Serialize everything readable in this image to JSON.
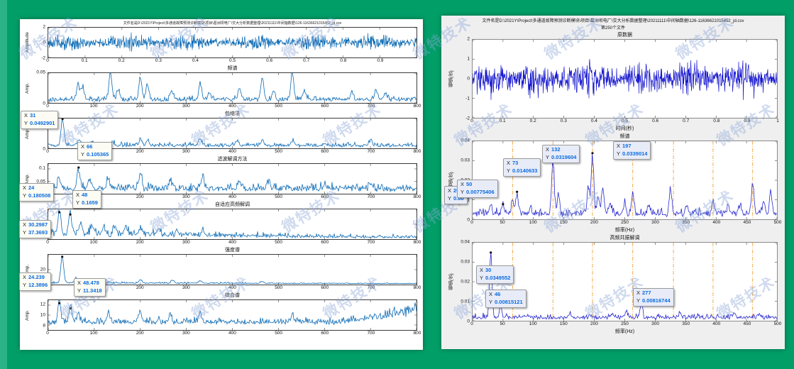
{
  "colors": {
    "background": "#019e68",
    "left_line": "#0d6bb5",
    "right_line": "#1515cf",
    "harmonic": "#f2a33c",
    "datatip_value": "#0a6bdf"
  },
  "watermark": {
    "text": "微特技术",
    "color": "#8fa9d9"
  },
  "labels": {
    "x_prefix": "X",
    "y_prefix": "Y"
  },
  "left_figure": {
    "title": "文件名是D:\\2021Y\\Project\\多通道故障预测诊断模块\\项目\\葛洲坝电厂\\交大分析数据整理\\20211111\\中间轴数据\\126-11636621015452_jd.csv"
  },
  "right_figure": {
    "title_lines": [
      "文件名是D:\\2021Y\\Project\\多通道故障预测诊断模块\\项目\\葛洲坝电厂\\交大分析数据整理\\20211111\\中间轴数据\\126-11636621015452_jd.csv",
      "第250个文件"
    ]
  },
  "tips": [
    {
      "x": "31",
      "y": "0.0492901"
    },
    {
      "x": "66",
      "y": "0.105365"
    },
    {
      "x": "24",
      "y": "0.180508"
    },
    {
      "x": "48",
      "y": "0.1659"
    },
    {
      "x": "30.2987",
      "y": "37.3693"
    },
    {
      "x": "24.239",
      "y": "12.3896"
    },
    {
      "x": "48.478",
      "y": "11.3418"
    },
    {
      "x": "29",
      "y": "0.00"
    },
    {
      "x": "50",
      "y": "0.00775406"
    },
    {
      "x": "73",
      "y": "0.0140633"
    },
    {
      "x": "132",
      "y": "0.0319604"
    },
    {
      "x": "197",
      "y": "0.0339014"
    },
    {
      "x": "30",
      "y": "0.0349552"
    },
    {
      "x": "46",
      "y": "0.00815121"
    },
    {
      "x": "277",
      "y": "0.00816744"
    }
  ],
  "chart_data": [
    {
      "id": "L0",
      "type": "line",
      "kind": "noise",
      "title": "",
      "ylabel": "Amplitude",
      "xlim": [
        0,
        1
      ],
      "ylim": [
        -2,
        2
      ],
      "xticks": [
        0,
        0.1,
        0.2,
        0.3,
        0.4,
        0.5,
        0.6,
        0.7,
        0.8,
        0.9
      ],
      "yticks": [
        -2,
        0,
        2
      ],
      "amp": 1.05,
      "seed": 11,
      "color": "#0d6bb5"
    },
    {
      "id": "L1",
      "type": "line",
      "kind": "spectrum",
      "title": "频谱",
      "ylabel": "Amp.",
      "xlim": [
        0,
        800
      ],
      "ylim": [
        0,
        0.05
      ],
      "xticks": [
        0,
        100,
        200,
        300,
        400,
        500,
        600,
        700,
        800
      ],
      "yticks": [
        0,
        0.05
      ],
      "base": 0.006,
      "seed": 22,
      "color": "#0d6bb5",
      "peaks": [
        [
          65,
          0.024
        ],
        [
          75,
          0.02
        ],
        [
          135,
          0.044
        ],
        [
          152,
          0.018
        ],
        [
          200,
          0.036
        ],
        [
          215,
          0.024
        ],
        [
          268,
          0.015
        ],
        [
          330,
          0.027
        ],
        [
          350,
          0.011
        ],
        [
          415,
          0.02
        ],
        [
          465,
          0.037
        ],
        [
          490,
          0.016
        ],
        [
          530,
          0.045
        ],
        [
          556,
          0.017
        ],
        [
          660,
          0.013
        ],
        [
          712,
          0.016
        ],
        [
          732,
          0.013
        ]
      ]
    },
    {
      "id": "L2",
      "type": "line",
      "kind": "spectrum",
      "title": "包络法",
      "ylabel": "Amp.",
      "xlim": [
        0,
        800
      ],
      "ylim": [
        0,
        0.05
      ],
      "xticks": [
        0,
        100,
        200,
        300,
        400,
        500,
        600,
        700,
        800
      ],
      "yticks": [
        0,
        0.05
      ],
      "base": 0.005,
      "seed": 33,
      "color": "#0d6bb5",
      "peaks": [
        [
          31,
          0.046
        ],
        [
          66,
          0.011
        ],
        [
          96,
          0.007
        ],
        [
          140,
          0.006
        ],
        [
          200,
          0.011
        ],
        [
          216,
          0.008
        ],
        [
          330,
          0.012
        ],
        [
          410,
          0.008
        ],
        [
          465,
          0.01
        ],
        [
          532,
          0.007
        ],
        [
          700,
          0.008
        ]
      ],
      "dots": [
        [
          31,
          0.0492901
        ]
      ]
    },
    {
      "id": "L3",
      "type": "line",
      "kind": "spectrum",
      "title": "滤波解调方法",
      "ylabel": "Amp.",
      "xlim": [
        0,
        800
      ],
      "ylim": [
        0,
        0.12
      ],
      "xticks": [
        0,
        100,
        200,
        300,
        400,
        500,
        600,
        700,
        800
      ],
      "yticks": [
        0.05,
        0.1
      ],
      "base": 0.022,
      "seed": 44,
      "color": "#0d6bb5",
      "peaks": [
        [
          24,
          0.045
        ],
        [
          66,
          0.082
        ],
        [
          90,
          0.035
        ],
        [
          130,
          0.04
        ],
        [
          200,
          0.065
        ],
        [
          265,
          0.04
        ],
        [
          335,
          0.05
        ],
        [
          415,
          0.03
        ],
        [
          480,
          0.028
        ],
        [
          600,
          0.02
        ],
        [
          700,
          0.02
        ]
      ],
      "dots": [
        [
          66,
          0.105365
        ]
      ]
    },
    {
      "id": "L4",
      "type": "line",
      "kind": "spectrum",
      "title": "自适应高频解调",
      "ylabel": "Amp.",
      "xlim": [
        0,
        800
      ],
      "ylim": [
        0,
        0.2
      ],
      "xticks": [
        0,
        100,
        200,
        300,
        400,
        500,
        600,
        700,
        800
      ],
      "yticks": [
        0.1
      ],
      "base": 0.045,
      "decay": 700,
      "seed": 55,
      "color": "#0d6bb5",
      "peaks": [
        [
          24,
          0.155
        ],
        [
          48,
          0.14
        ],
        [
          70,
          0.07
        ],
        [
          95,
          0.055
        ],
        [
          120,
          0.05
        ],
        [
          145,
          0.055
        ],
        [
          170,
          0.04
        ],
        [
          200,
          0.05
        ],
        [
          240,
          0.04
        ],
        [
          280,
          0.035
        ],
        [
          335,
          0.04
        ]
      ],
      "dots": [
        [
          24,
          0.180508
        ],
        [
          48,
          0.1659
        ]
      ]
    },
    {
      "id": "L5",
      "type": "line",
      "kind": "spectrum",
      "title": "强度谱",
      "ylabel": "Amp.",
      "xlim": [
        0,
        800
      ],
      "ylim": [
        0,
        40
      ],
      "xticks": [
        0,
        100,
        200,
        300,
        400,
        500,
        600,
        700,
        800
      ],
      "yticks": [
        20
      ],
      "floor": 0.8,
      "base": 1.8,
      "decay": 800,
      "seed": 66,
      "color": "#0d6bb5",
      "peaks": [
        [
          30.3,
          36
        ],
        [
          60,
          7
        ],
        [
          90,
          4
        ],
        [
          200,
          4.5
        ],
        [
          270,
          4
        ],
        [
          330,
          3.5
        ],
        [
          465,
          2.5
        ]
      ],
      "dots": [
        [
          30.2987,
          37.3693
        ]
      ]
    },
    {
      "id": "L6",
      "type": "line",
      "kind": "spectrum",
      "title": "综合谱",
      "ylabel": "Amp.",
      "xlim": [
        0,
        800
      ],
      "ylim": [
        7,
        13
      ],
      "xticks": [
        0,
        100,
        200,
        300,
        400,
        500,
        600,
        700,
        800
      ],
      "yticks": [
        8,
        10,
        12
      ],
      "floor": 7.75,
      "base": 0.9,
      "ramp": [
        620,
        800,
        3.0
      ],
      "seed": 77,
      "color": "#0d6bb5",
      "peaks": [
        [
          24.2,
          4.4
        ],
        [
          48.5,
          3.3
        ],
        [
          65,
          1.8
        ],
        [
          130,
          1.5
        ],
        [
          200,
          2.2
        ],
        [
          265,
          1.8
        ],
        [
          330,
          1.9
        ],
        [
          530,
          1.5
        ]
      ],
      "dots": [
        [
          24.239,
          12.3896
        ],
        [
          48.478,
          11.3418
        ]
      ]
    },
    {
      "id": "R0",
      "type": "line",
      "kind": "noise",
      "title": "原数据",
      "ylabel": "幅值(伏)",
      "xlabel": "时间(秒)",
      "xlim": [
        0,
        1
      ],
      "ylim": [
        -2,
        2
      ],
      "xticks": [
        0,
        0.1,
        0.2,
        0.3,
        0.4,
        0.5,
        0.6,
        0.7,
        0.8,
        0.9,
        1
      ],
      "yticks": [
        -2,
        -1,
        0,
        1,
        2
      ],
      "amp": 0.92,
      "seed": 88,
      "color": "#1515cf"
    },
    {
      "id": "R1",
      "type": "line",
      "kind": "spectrum",
      "title": "频谱",
      "ylabel": "幅值(伏)",
      "xlabel": "频率(Hz)",
      "xlim": [
        0,
        500
      ],
      "ylim": [
        0,
        0.04
      ],
      "xticks": [
        0,
        50,
        100,
        150,
        200,
        250,
        300,
        350,
        400,
        450,
        500
      ],
      "yticks": [
        0,
        0.01,
        0.02,
        0.03,
        0.04
      ],
      "base": 0.003,
      "seed": 99,
      "color": "#2a2ad0",
      "harmonics": [
        66,
        132,
        197,
        263,
        330,
        395,
        460
      ],
      "peaks": [
        [
          29,
          0.005
        ],
        [
          50,
          0.0052
        ],
        [
          66,
          0.007
        ],
        [
          73,
          0.011
        ],
        [
          95,
          0.004
        ],
        [
          132,
          0.029
        ],
        [
          141,
          0.01
        ],
        [
          190,
          0.014
        ],
        [
          197,
          0.031
        ],
        [
          206,
          0.009
        ],
        [
          214,
          0.013
        ],
        [
          226,
          0.006
        ],
        [
          250,
          0.005
        ],
        [
          263,
          0.011
        ],
        [
          290,
          0.004
        ],
        [
          325,
          0.013
        ],
        [
          352,
          0.004
        ],
        [
          395,
          0.0075
        ],
        [
          420,
          0.005
        ],
        [
          440,
          0.004
        ],
        [
          460,
          0.016
        ],
        [
          478,
          0.006
        ],
        [
          490,
          0.011
        ]
      ],
      "dots": [
        [
          50,
          0.00775406
        ],
        [
          73,
          0.0140633
        ],
        [
          132,
          0.0319604
        ],
        [
          197,
          0.0339014
        ]
      ]
    },
    {
      "id": "R2",
      "type": "line",
      "kind": "spectrum",
      "title": "高频共振解调",
      "ylabel": "幅值(伏)",
      "xlabel": "频率(Hz)",
      "xlim": [
        0,
        500
      ],
      "ylim": [
        0,
        0.04
      ],
      "xticks": [
        0,
        50,
        100,
        150,
        200,
        250,
        300,
        350,
        400,
        450,
        500
      ],
      "yticks": [
        0,
        0.01,
        0.02,
        0.03,
        0.04
      ],
      "base": 0.0018,
      "seed": 111,
      "color": "#2a2ad0",
      "harmonics": [
        66,
        132,
        197,
        263,
        330,
        395,
        460
      ],
      "peaks": [
        [
          30,
          0.0335
        ],
        [
          46,
          0.007
        ],
        [
          92,
          0.0015
        ],
        [
          160,
          0.0015
        ],
        [
          230,
          0.0025
        ],
        [
          252,
          0.003
        ],
        [
          277,
          0.007
        ],
        [
          340,
          0.0018
        ],
        [
          430,
          0.0018
        ],
        [
          470,
          0.002
        ]
      ],
      "dots": [
        [
          30,
          0.0349552
        ],
        [
          46,
          0.00815121
        ],
        [
          277,
          0.00816744
        ]
      ]
    }
  ]
}
